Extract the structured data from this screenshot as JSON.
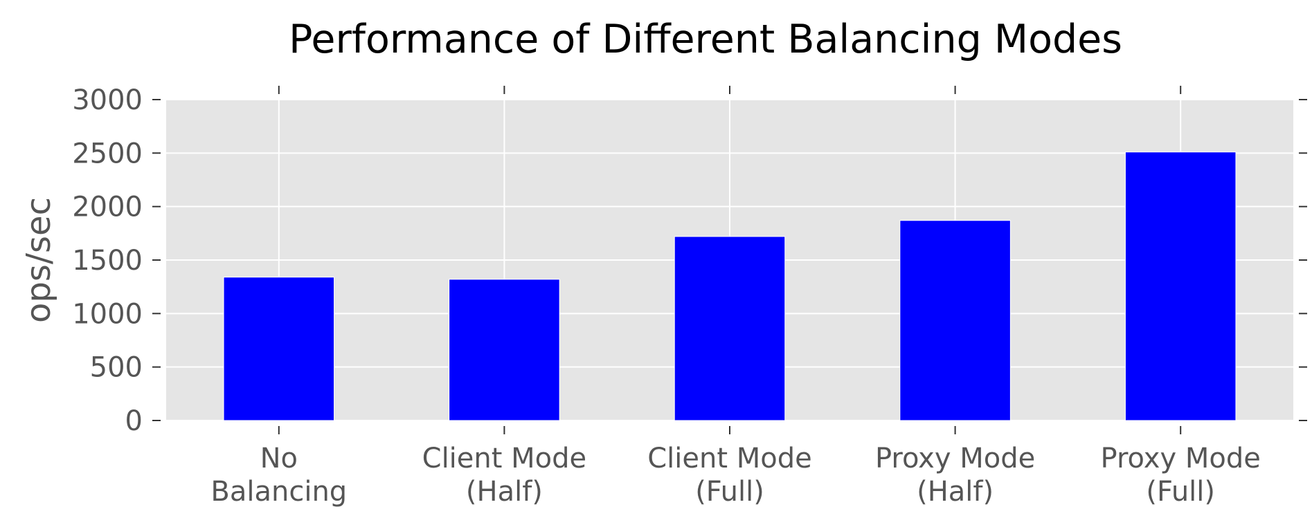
{
  "chart_data": {
    "type": "bar",
    "title": "Performance of Different Balancing Modes",
    "xlabel": "",
    "ylabel": "ops/sec",
    "categories": [
      [
        "No",
        "Balancing"
      ],
      [
        "Client Mode",
        "(Half)"
      ],
      [
        "Client Mode",
        "(Full)"
      ],
      [
        "Proxy Mode",
        "(Half)"
      ],
      [
        "Proxy Mode",
        "(Full)"
      ]
    ],
    "values": [
      1340,
      1320,
      1720,
      1870,
      2510
    ],
    "ylim": [
      0,
      3000
    ],
    "yticks": [
      0,
      500,
      1000,
      1500,
      2000,
      2500,
      3000
    ],
    "grid": true,
    "legend": "none",
    "colors": {
      "bar": "#0000ff",
      "plot_background": "#e5e5e5",
      "grid": "#ffffff",
      "tick_text": "#555555",
      "title_text": "#000000"
    }
  }
}
